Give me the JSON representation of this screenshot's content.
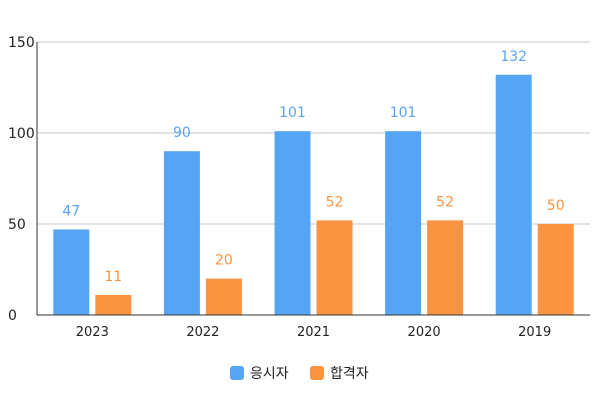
{
  "chart_data": {
    "type": "bar",
    "title": "",
    "xlabel": "",
    "ylabel": "",
    "categories": [
      "2023",
      "2022",
      "2021",
      "2020",
      "2019"
    ],
    "series": [
      {
        "name": "응시자",
        "values": [
          47,
          90,
          101,
          101,
          132
        ],
        "color": "#56a5f5"
      },
      {
        "name": "합격자",
        "values": [
          11,
          20,
          52,
          52,
          50
        ],
        "color": "#fa9440"
      }
    ],
    "ylim": [
      0,
      150
    ],
    "yticks": [
      0,
      50,
      100,
      150
    ],
    "grid": true,
    "legend": "bottom-center",
    "label_colors": {
      "응시자": "#56a5f5",
      "합격자": "#fa9440"
    }
  }
}
